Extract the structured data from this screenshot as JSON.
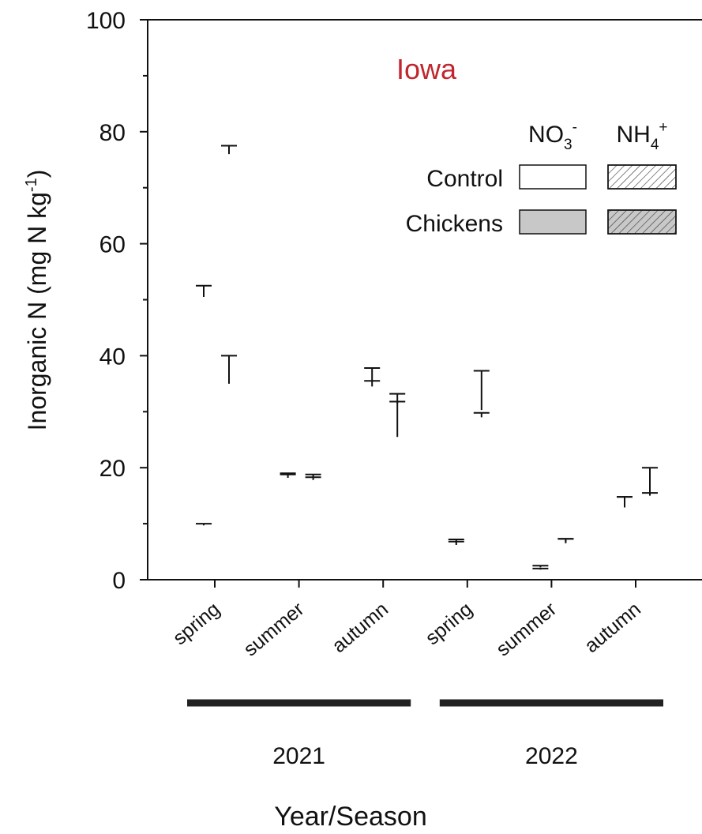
{
  "chart_data": {
    "type": "stacked-bar-error",
    "title": "Iowa",
    "title_color": "#c0262d",
    "ylabel": {
      "text": "Inorganic N (mg N kg",
      "sup": "-1",
      "tail": ")"
    },
    "xlabel": "Year/Season",
    "categories": [
      "spring",
      "summer",
      "autumn",
      "spring",
      "summer",
      "autumn"
    ],
    "years": [
      "2021",
      "2022"
    ],
    "ylim": [
      0,
      100
    ],
    "yticks": [
      0,
      20,
      40,
      60,
      80,
      100
    ],
    "yminor_ticks": [
      10,
      30,
      50,
      70,
      90
    ],
    "legend_columns": [
      {
        "text": "NO",
        "sub": "3",
        "sup": "-"
      },
      {
        "text": "NH",
        "sub": "4",
        "sup": "+"
      }
    ],
    "groups": [
      {
        "name": "Control",
        "fill": "#ffffff",
        "segments": [
          {
            "hatch": false,
            "values": [
              9.7,
              18.2,
              34.5,
              6.2,
              1.8,
              12.9
            ],
            "errors": [
              0.3,
              0.6,
              1.0,
              1.0,
              0.2,
              1.9
            ]
          },
          {
            "hatch": true,
            "values": [
              40.8,
              0.5,
              1.0,
              0.3,
              0.4,
              0.5
            ],
            "errors": [
              2.0,
              0.3,
              2.3,
              0.3,
              0.3,
              1.4
            ]
          }
        ]
      },
      {
        "name": "Chickens",
        "fill": "#c8c8c8",
        "segments": [
          {
            "hatch": false,
            "values": [
              35,
              17.8,
              25.5,
              29,
              6.5,
              15
            ],
            "errors": [
              5,
              0.5,
              6.3,
              0.8,
              0.8,
              0.5
            ]
          },
          {
            "hatch": true,
            "values": [
              41,
              0.6,
              6,
              1.3,
              0.3,
              0.5
            ],
            "errors": [
              1.5,
              0.4,
              1.7,
              7,
              0.5,
              4.5
            ]
          }
        ]
      }
    ]
  }
}
